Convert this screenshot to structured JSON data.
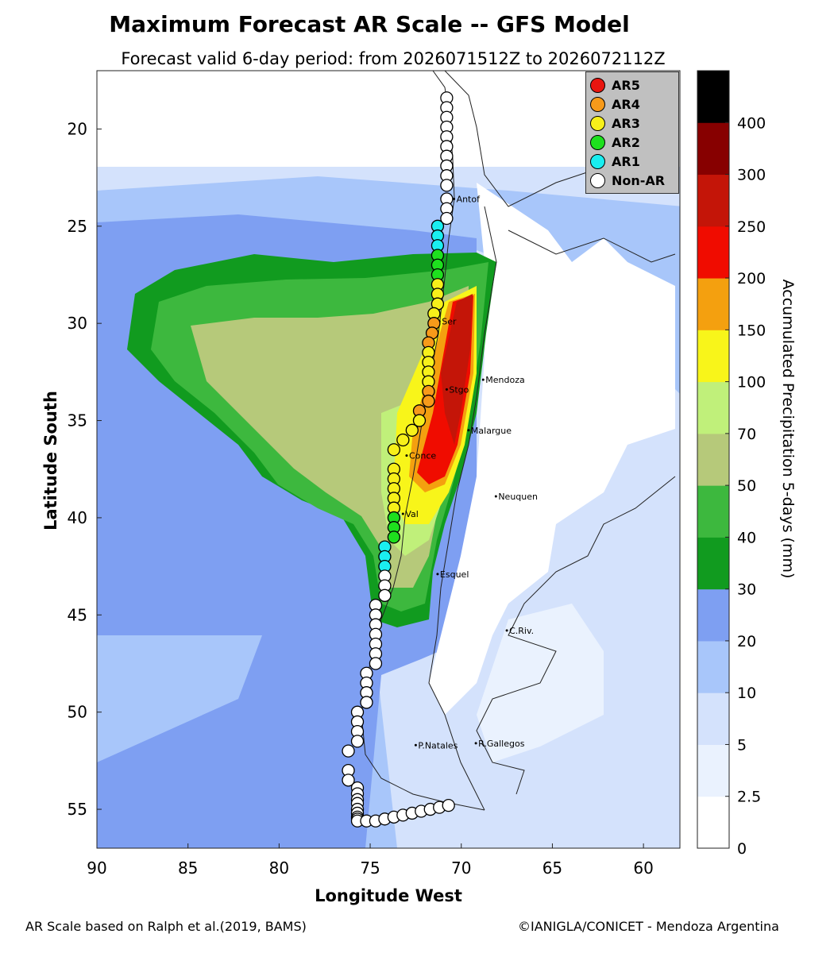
{
  "title": "Maximum Forecast AR Scale -- GFS Model",
  "subtitle": "Forecast valid 6-day period: from 2026071512Z to 2026072112Z",
  "axes": {
    "ylabel": "Latitude South",
    "xlabel": "Longitude West",
    "yticks": [
      "20",
      "25",
      "30",
      "35",
      "40",
      "45",
      "50",
      "55"
    ],
    "xticks": [
      "90",
      "85",
      "80",
      "75",
      "70",
      "65",
      "60"
    ],
    "lon_range": [
      90,
      58
    ],
    "lat_range": [
      17,
      57
    ]
  },
  "legend": {
    "items": [
      {
        "label": "AR5",
        "color": "#e8150f"
      },
      {
        "label": "AR4",
        "color": "#f79a1a"
      },
      {
        "label": "AR3",
        "color": "#f7f01a"
      },
      {
        "label": "AR2",
        "color": "#1ee01e"
      },
      {
        "label": "AR1",
        "color": "#1aeef0"
      },
      {
        "label": "Non-AR",
        "color": "#ffffff"
      }
    ]
  },
  "colorbar": {
    "title": "Accumulated Precipitation 5-days (mm)",
    "labels": [
      "0",
      "2.5",
      "5",
      "10",
      "20",
      "30",
      "40",
      "50",
      "70",
      "100",
      "150",
      "200",
      "250",
      "300",
      "400"
    ],
    "colors": [
      "#ffffff",
      "#eaf2fe",
      "#d4e2fc",
      "#a8c6fa",
      "#7e9ff2",
      "#119b1f",
      "#3db83e",
      "#b6c97a",
      "#c0f07a",
      "#f8f51a",
      "#f4a00f",
      "#f00c00",
      "#c41508",
      "#870000",
      "#000000"
    ]
  },
  "cities": [
    {
      "name": "Antof",
      "lon": 70.4,
      "lat": 23.6
    },
    {
      "name": "Ser",
      "lon": 71.2,
      "lat": 29.9
    },
    {
      "name": "Mendoza",
      "lon": 68.8,
      "lat": 32.9
    },
    {
      "name": "Stgo",
      "lon": 70.8,
      "lat": 33.4
    },
    {
      "name": "Malargue",
      "lon": 69.6,
      "lat": 35.5
    },
    {
      "name": "Conce",
      "lon": 73.0,
      "lat": 36.8
    },
    {
      "name": "Neuquen",
      "lon": 68.1,
      "lat": 38.9
    },
    {
      "name": "Val",
      "lon": 73.2,
      "lat": 39.8
    },
    {
      "name": "Esquel",
      "lon": 71.3,
      "lat": 42.9
    },
    {
      "name": "C.Riv.",
      "lon": 67.5,
      "lat": 45.8
    },
    {
      "name": "P.Natales",
      "lon": 72.5,
      "lat": 51.7
    },
    {
      "name": "R.Gallegos",
      "lon": 69.2,
      "lat": 51.6
    }
  ],
  "ar_points": {
    "lon": [
      70.8,
      70.8,
      70.8,
      70.8,
      70.8,
      70.8,
      70.8,
      70.8,
      70.8,
      70.8,
      70.8,
      70.8,
      70.8,
      71.3,
      71.3,
      71.3,
      71.3,
      71.3,
      71.3,
      71.3,
      71.3,
      71.3,
      71.5,
      71.5,
      71.6,
      71.8,
      71.8,
      71.8,
      71.8,
      71.8,
      71.8,
      71.8,
      72.3,
      72.3,
      72.7,
      73.2,
      73.7,
      73.7,
      73.7,
      73.7,
      73.7,
      73.7,
      73.7,
      73.7,
      73.7,
      74.2,
      74.2,
      74.2,
      74.2,
      74.2,
      74.2,
      74.7,
      74.7,
      74.7,
      74.7,
      74.7,
      74.7,
      74.7,
      75.2,
      75.2,
      75.2,
      75.2,
      75.7,
      75.7,
      75.7,
      75.7,
      76.2,
      76.2,
      76.2,
      75.7,
      75.7,
      75.7,
      75.7,
      75.7,
      75.7,
      75.7,
      75.7,
      75.7,
      75.2,
      74.7,
      74.2,
      73.7,
      73.2,
      72.7,
      72.2,
      71.7,
      71.2,
      70.7
    ],
    "lat": [
      18.4,
      18.9,
      19.4,
      19.9,
      20.4,
      20.9,
      21.4,
      21.9,
      22.4,
      22.9,
      23.6,
      24.1,
      24.6,
      25.0,
      25.5,
      26.0,
      26.5,
      27.0,
      27.5,
      28.0,
      28.5,
      29.0,
      29.5,
      30.0,
      30.5,
      31.0,
      31.5,
      32.0,
      32.5,
      33.0,
      33.5,
      34.0,
      34.5,
      35.0,
      35.5,
      36.0,
      36.5,
      37.5,
      38.0,
      38.5,
      39.0,
      39.5,
      40.0,
      40.5,
      41.0,
      41.5,
      42.0,
      42.5,
      43.0,
      43.5,
      44.0,
      44.5,
      45.0,
      45.5,
      46.0,
      46.5,
      47.0,
      47.5,
      48.0,
      48.5,
      49.0,
      49.5,
      50.0,
      50.5,
      51.0,
      51.5,
      52.0,
      53.0,
      53.5,
      53.9,
      54.2,
      54.5,
      54.7,
      55.0,
      55.2,
      55.4,
      55.5,
      55.6,
      55.6,
      55.6,
      55.5,
      55.4,
      55.3,
      55.2,
      55.1,
      55.0,
      54.9,
      54.8
    ],
    "category": [
      "Non-AR",
      "Non-AR",
      "Non-AR",
      "Non-AR",
      "Non-AR",
      "Non-AR",
      "Non-AR",
      "Non-AR",
      "Non-AR",
      "Non-AR",
      "Non-AR",
      "Non-AR",
      "Non-AR",
      "AR1",
      "AR1",
      "AR1",
      "AR2",
      "AR2",
      "AR2",
      "AR3",
      "AR3",
      "AR3",
      "AR3",
      "AR4",
      "AR4",
      "AR4",
      "AR3",
      "AR3",
      "AR3",
      "AR3",
      "AR4",
      "AR4",
      "AR4",
      "AR3",
      "AR3",
      "AR3",
      "AR3",
      "AR3",
      "AR3",
      "AR3",
      "AR3",
      "AR3",
      "AR2",
      "AR2",
      "AR2",
      "AR1",
      "AR1",
      "AR1",
      "Non-AR",
      "Non-AR",
      "Non-AR",
      "Non-AR",
      "Non-AR",
      "Non-AR",
      "Non-AR",
      "Non-AR",
      "Non-AR",
      "Non-AR",
      "Non-AR",
      "Non-AR",
      "Non-AR",
      "Non-AR",
      "Non-AR",
      "Non-AR",
      "Non-AR",
      "Non-AR",
      "Non-AR",
      "Non-AR",
      "Non-AR",
      "Non-AR",
      "Non-AR",
      "Non-AR",
      "Non-AR",
      "Non-AR",
      "Non-AR",
      "Non-AR",
      "Non-AR",
      "Non-AR",
      "Non-AR",
      "Non-AR",
      "Non-AR",
      "Non-AR",
      "Non-AR",
      "Non-AR",
      "Non-AR",
      "Non-AR",
      "Non-AR",
      "Non-AR"
    ]
  },
  "footer": {
    "left": "AR Scale based on Ralph et al.(2019, BAMS)",
    "right": "©IANIGLA/CONICET - Mendoza Argentina"
  }
}
